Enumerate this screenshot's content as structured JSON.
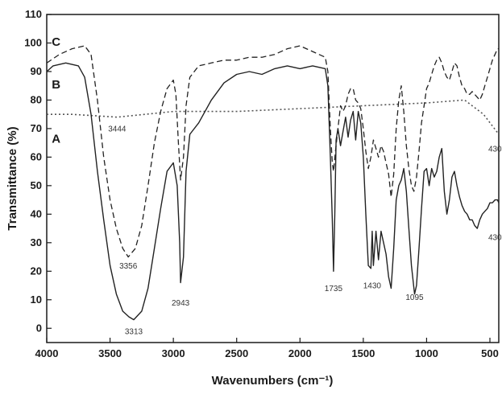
{
  "chart_data": {
    "type": "line",
    "xlabel": "Wavenumbers (cm⁻¹)",
    "ylabel": "Transmittance (%)",
    "xlim": [
      4000,
      430
    ],
    "ylim": [
      -5,
      110
    ],
    "x_reversed": true,
    "x_ticks": [
      4000,
      3500,
      3000,
      2500,
      2000,
      1500,
      1000,
      500
    ],
    "y_ticks": [
      0,
      10,
      20,
      30,
      40,
      50,
      60,
      70,
      80,
      90,
      100,
      110
    ],
    "grid": false,
    "legend": "none",
    "series": [
      {
        "name": "A",
        "style": "dotted",
        "color": "#555555",
        "label_pos": [
          3960,
          65
        ],
        "points": [
          [
            4000,
            75
          ],
          [
            3800,
            75
          ],
          [
            3444,
            74
          ],
          [
            3000,
            76
          ],
          [
            2500,
            76
          ],
          [
            2000,
            77
          ],
          [
            1500,
            78
          ],
          [
            1000,
            79
          ],
          [
            700,
            80
          ],
          [
            550,
            75
          ],
          [
            430,
            68
          ]
        ]
      },
      {
        "name": "B",
        "style": "solid",
        "color": "#222222",
        "label_pos": [
          3960,
          84
        ],
        "points": [
          [
            4000,
            90
          ],
          [
            3950,
            92
          ],
          [
            3850,
            93
          ],
          [
            3750,
            92
          ],
          [
            3700,
            88
          ],
          [
            3650,
            75
          ],
          [
            3600,
            55
          ],
          [
            3550,
            38
          ],
          [
            3500,
            22
          ],
          [
            3450,
            12
          ],
          [
            3400,
            6
          ],
          [
            3350,
            4
          ],
          [
            3313,
            3
          ],
          [
            3250,
            6
          ],
          [
            3200,
            14
          ],
          [
            3150,
            28
          ],
          [
            3100,
            42
          ],
          [
            3050,
            55
          ],
          [
            3000,
            58
          ],
          [
            2970,
            50
          ],
          [
            2950,
            30
          ],
          [
            2943,
            16
          ],
          [
            2920,
            25
          ],
          [
            2900,
            55
          ],
          [
            2870,
            68
          ],
          [
            2800,
            72
          ],
          [
            2700,
            80
          ],
          [
            2600,
            86
          ],
          [
            2500,
            89
          ],
          [
            2400,
            90
          ],
          [
            2300,
            89
          ],
          [
            2200,
            91
          ],
          [
            2100,
            92
          ],
          [
            2000,
            91
          ],
          [
            1900,
            92
          ],
          [
            1800,
            91
          ],
          [
            1780,
            85
          ],
          [
            1760,
            60
          ],
          [
            1745,
            38
          ],
          [
            1735,
            20
          ],
          [
            1725,
            40
          ],
          [
            1715,
            66
          ],
          [
            1700,
            70
          ],
          [
            1680,
            64
          ],
          [
            1660,
            69
          ],
          [
            1640,
            74
          ],
          [
            1620,
            67
          ],
          [
            1600,
            73
          ],
          [
            1580,
            76
          ],
          [
            1560,
            66
          ],
          [
            1540,
            76
          ],
          [
            1520,
            72
          ],
          [
            1500,
            60
          ],
          [
            1480,
            40
          ],
          [
            1460,
            22
          ],
          [
            1440,
            21
          ],
          [
            1430,
            34
          ],
          [
            1420,
            22
          ],
          [
            1400,
            34
          ],
          [
            1380,
            24
          ],
          [
            1360,
            34
          ],
          [
            1340,
            30
          ],
          [
            1320,
            26
          ],
          [
            1300,
            18
          ],
          [
            1280,
            14
          ],
          [
            1260,
            28
          ],
          [
            1240,
            45
          ],
          [
            1220,
            50
          ],
          [
            1200,
            52
          ],
          [
            1180,
            56
          ],
          [
            1160,
            48
          ],
          [
            1140,
            35
          ],
          [
            1120,
            22
          ],
          [
            1100,
            14
          ],
          [
            1095,
            12
          ],
          [
            1080,
            15
          ],
          [
            1060,
            28
          ],
          [
            1040,
            42
          ],
          [
            1020,
            55
          ],
          [
            1000,
            56
          ],
          [
            980,
            50
          ],
          [
            960,
            56
          ],
          [
            940,
            53
          ],
          [
            920,
            55
          ],
          [
            900,
            60
          ],
          [
            880,
            63
          ],
          [
            860,
            48
          ],
          [
            840,
            40
          ],
          [
            820,
            45
          ],
          [
            800,
            53
          ],
          [
            780,
            55
          ],
          [
            760,
            50
          ],
          [
            740,
            46
          ],
          [
            720,
            43
          ],
          [
            700,
            41
          ],
          [
            680,
            40
          ],
          [
            660,
            38
          ],
          [
            640,
            38
          ],
          [
            620,
            36
          ],
          [
            600,
            35
          ],
          [
            580,
            38
          ],
          [
            560,
            40
          ],
          [
            540,
            41
          ],
          [
            520,
            42
          ],
          [
            500,
            44
          ],
          [
            480,
            44
          ],
          [
            460,
            45
          ],
          [
            440,
            45
          ],
          [
            430,
            44
          ]
        ]
      },
      {
        "name": "C",
        "style": "dashed",
        "color": "#222222",
        "label_pos": [
          3960,
          99
        ],
        "points": [
          [
            4000,
            93
          ],
          [
            3900,
            96
          ],
          [
            3800,
            98
          ],
          [
            3700,
            99
          ],
          [
            3650,
            96
          ],
          [
            3600,
            80
          ],
          [
            3550,
            60
          ],
          [
            3500,
            45
          ],
          [
            3450,
            35
          ],
          [
            3400,
            28
          ],
          [
            3356,
            25
          ],
          [
            3300,
            28
          ],
          [
            3250,
            36
          ],
          [
            3200,
            50
          ],
          [
            3150,
            65
          ],
          [
            3100,
            76
          ],
          [
            3050,
            84
          ],
          [
            3000,
            87
          ],
          [
            2980,
            82
          ],
          [
            2960,
            65
          ],
          [
            2943,
            52
          ],
          [
            2920,
            60
          ],
          [
            2900,
            78
          ],
          [
            2870,
            88
          ],
          [
            2800,
            92
          ],
          [
            2700,
            93
          ],
          [
            2600,
            94
          ],
          [
            2500,
            94
          ],
          [
            2400,
            95
          ],
          [
            2300,
            95
          ],
          [
            2200,
            96
          ],
          [
            2100,
            98
          ],
          [
            2000,
            99
          ],
          [
            1900,
            97
          ],
          [
            1800,
            95
          ],
          [
            1780,
            90
          ],
          [
            1760,
            70
          ],
          [
            1745,
            58
          ],
          [
            1735,
            55
          ],
          [
            1720,
            62
          ],
          [
            1700,
            70
          ],
          [
            1680,
            78
          ],
          [
            1660,
            76
          ],
          [
            1640,
            78
          ],
          [
            1620,
            82
          ],
          [
            1600,
            84
          ],
          [
            1580,
            84
          ],
          [
            1560,
            80
          ],
          [
            1540,
            79
          ],
          [
            1520,
            77
          ],
          [
            1500,
            70
          ],
          [
            1480,
            62
          ],
          [
            1460,
            56
          ],
          [
            1440,
            60
          ],
          [
            1430,
            63
          ],
          [
            1420,
            66
          ],
          [
            1400,
            63
          ],
          [
            1380,
            60
          ],
          [
            1360,
            64
          ],
          [
            1340,
            62
          ],
          [
            1320,
            58
          ],
          [
            1300,
            54
          ],
          [
            1280,
            46
          ],
          [
            1260,
            54
          ],
          [
            1240,
            70
          ],
          [
            1220,
            80
          ],
          [
            1200,
            85
          ],
          [
            1180,
            76
          ],
          [
            1160,
            64
          ],
          [
            1140,
            56
          ],
          [
            1120,
            50
          ],
          [
            1100,
            48
          ],
          [
            1080,
            53
          ],
          [
            1060,
            62
          ],
          [
            1040,
            72
          ],
          [
            1020,
            78
          ],
          [
            1000,
            84
          ],
          [
            980,
            86
          ],
          [
            960,
            89
          ],
          [
            940,
            92
          ],
          [
            920,
            94
          ],
          [
            900,
            95
          ],
          [
            880,
            93
          ],
          [
            860,
            90
          ],
          [
            840,
            88
          ],
          [
            820,
            87
          ],
          [
            800,
            90
          ],
          [
            780,
            93
          ],
          [
            760,
            92
          ],
          [
            740,
            88
          ],
          [
            720,
            85
          ],
          [
            700,
            84
          ],
          [
            680,
            82
          ],
          [
            660,
            82
          ],
          [
            640,
            83
          ],
          [
            620,
            82
          ],
          [
            600,
            81
          ],
          [
            580,
            80
          ],
          [
            560,
            82
          ],
          [
            540,
            85
          ],
          [
            520,
            88
          ],
          [
            500,
            91
          ],
          [
            480,
            94
          ],
          [
            460,
            96
          ],
          [
            440,
            98
          ],
          [
            430,
            98
          ]
        ]
      }
    ],
    "annotations": [
      {
        "text": "3444",
        "x": 3444,
        "y": 69
      },
      {
        "text": "3356",
        "x": 3356,
        "y": 21
      },
      {
        "text": "3313",
        "x": 3313,
        "y": -2
      },
      {
        "text": "2943",
        "x": 2943,
        "y": 8
      },
      {
        "text": "1735",
        "x": 1735,
        "y": 13
      },
      {
        "text": "1430",
        "x": 1430,
        "y": 14
      },
      {
        "text": "1095",
        "x": 1095,
        "y": 10
      },
      {
        "text": "430",
        "x": 460,
        "y": 62
      },
      {
        "text": "430",
        "x": 460,
        "y": 31
      }
    ]
  }
}
